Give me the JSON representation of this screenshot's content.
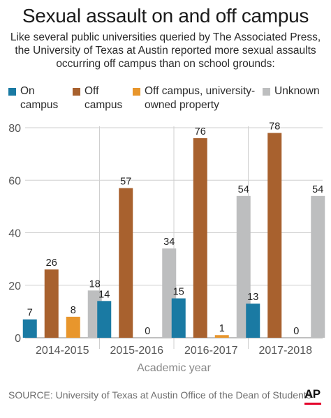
{
  "title": "Sexual assault on and off campus",
  "subtitle_lines": [
    "Like several public universities queried by The Associated Press,",
    "the University of Texas at Austin reported more sexual assaults",
    "occurring off campus than on school grounds:"
  ],
  "legend": [
    {
      "lines": [
        "On",
        "campus"
      ],
      "color": "#1a7aa3"
    },
    {
      "lines": [
        "Off",
        "campus"
      ],
      "color": "#a8612e"
    },
    {
      "lines": [
        "Off campus, university-",
        "owned property"
      ],
      "color": "#e8962c"
    },
    {
      "lines": [
        "Unknown"
      ],
      "color": "#bdbebf"
    }
  ],
  "chart_data": {
    "type": "bar",
    "categories": [
      "2014-2015",
      "2015-2016",
      "2016-2017",
      "2017-2018"
    ],
    "series": [
      {
        "name": "On campus",
        "color": "#1a7aa3",
        "values": [
          7,
          14,
          15,
          13
        ]
      },
      {
        "name": "Off campus",
        "color": "#a8612e",
        "values": [
          26,
          57,
          76,
          78
        ]
      },
      {
        "name": "Off campus, university-owned property",
        "color": "#e8962c",
        "values": [
          8,
          0,
          1,
          0
        ]
      },
      {
        "name": "Unknown",
        "color": "#bdbebf",
        "values": [
          18,
          34,
          54,
          54
        ]
      }
    ],
    "xlabel": "Academic year",
    "ylabel": "",
    "ylim": [
      0,
      80
    ],
    "yticks": [
      0,
      20,
      40,
      60,
      80
    ],
    "grid": true,
    "legend_position": "top"
  },
  "source": "SOURCE: University of Texas at Austin Office of the Dean of Students",
  "logo": "AP"
}
